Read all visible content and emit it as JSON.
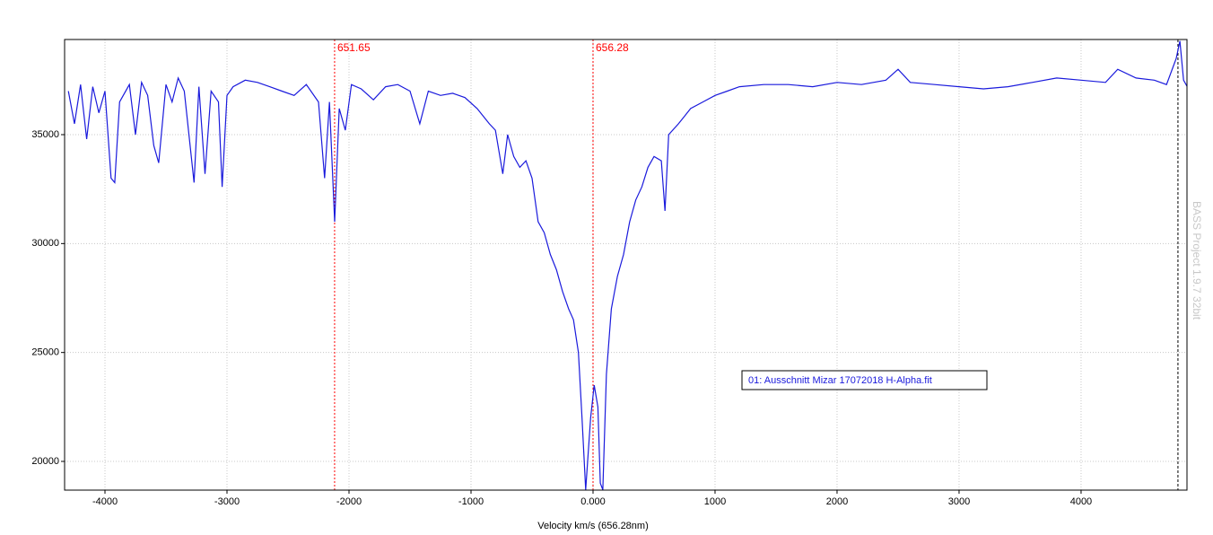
{
  "chart_data": {
    "type": "line",
    "x_label": "Velocity km/s (656.28nm)",
    "watermark": "BASS Project 1.9.7  32bit",
    "x": [
      -4300,
      -4250,
      -4200,
      -4150,
      -4100,
      -4050,
      -4000,
      -3950,
      -3920,
      -3880,
      -3800,
      -3750,
      -3700,
      -3650,
      -3600,
      -3560,
      -3500,
      -3450,
      -3400,
      -3350,
      -3270,
      -3230,
      -3180,
      -3130,
      -3070,
      -3040,
      -3000,
      -2950,
      -2850,
      -2750,
      -2650,
      -2550,
      -2450,
      -2350,
      -2250,
      -2200,
      -2160,
      -2118,
      -2080,
      -2030,
      -1980,
      -1900,
      -1800,
      -1700,
      -1600,
      -1500,
      -1420,
      -1350,
      -1250,
      -1150,
      -1050,
      -950,
      -850,
      -800,
      -740,
      -700,
      -650,
      -600,
      -550,
      -500,
      -450,
      -400,
      -350,
      -300,
      -250,
      -200,
      -160,
      -120,
      -90,
      -60,
      -20,
      10,
      40,
      60,
      80,
      110,
      150,
      200,
      250,
      300,
      350,
      400,
      450,
      500,
      560,
      590,
      620,
      700,
      800,
      900,
      1000,
      1100,
      1200,
      1400,
      1600,
      1800,
      2000,
      2200,
      2400,
      2500,
      2600,
      2800,
      3000,
      3200,
      3400,
      3600,
      3800,
      4000,
      4200,
      4300,
      4450,
      4600,
      4700,
      4780,
      4810,
      4840,
      4870
    ],
    "series": [
      {
        "name": "01: Ausschnitt Mizar 17072018 H-Alpha.fit",
        "color": "#1a1adc",
        "values": [
          37000,
          35500,
          37300,
          34800,
          37200,
          36000,
          37000,
          33000,
          32800,
          36500,
          37300,
          35000,
          37400,
          36800,
          34500,
          33700,
          37300,
          36500,
          37600,
          37000,
          32800,
          37200,
          33200,
          37000,
          36500,
          32600,
          36800,
          37200,
          37500,
          37400,
          37200,
          37000,
          36800,
          37300,
          36500,
          33000,
          36500,
          31000,
          36200,
          35200,
          37300,
          37100,
          36600,
          37200,
          37300,
          37000,
          35500,
          37000,
          36800,
          36900,
          36700,
          36200,
          35500,
          35200,
          33200,
          35000,
          34000,
          33500,
          33800,
          33000,
          31000,
          30500,
          29500,
          28800,
          27800,
          27000,
          26500,
          25000,
          22000,
          18700,
          22000,
          23500,
          22500,
          19000,
          18700,
          24000,
          27000,
          28500,
          29500,
          31000,
          32000,
          32600,
          33500,
          34000,
          33800,
          31500,
          35000,
          35500,
          36200,
          36500,
          36800,
          37000,
          37200,
          37300,
          37300,
          37200,
          37400,
          37300,
          37500,
          38000,
          37400,
          37300,
          37200,
          37100,
          37200,
          37400,
          37600,
          37500,
          37400,
          38000,
          37600,
          37500,
          37300,
          38500,
          39300,
          37500,
          37200
        ]
      }
    ],
    "xlim": [
      -4331,
      4868
    ],
    "ylim": [
      18682,
      39368
    ],
    "xticks": [
      -4000,
      -3000,
      -2000,
      -1000,
      {
        "value": 0,
        "label": "0.000"
      },
      1000,
      2000,
      3000,
      4000
    ],
    "yticks": [
      20000,
      25000,
      30000,
      35000
    ],
    "grid": true,
    "annotations": [
      {
        "x": -2118,
        "label": "651.65",
        "color": "#ff0000"
      },
      {
        "x": 0,
        "label": "656.28",
        "color": "#ff0000"
      }
    ],
    "cursor_x": 4794
  }
}
